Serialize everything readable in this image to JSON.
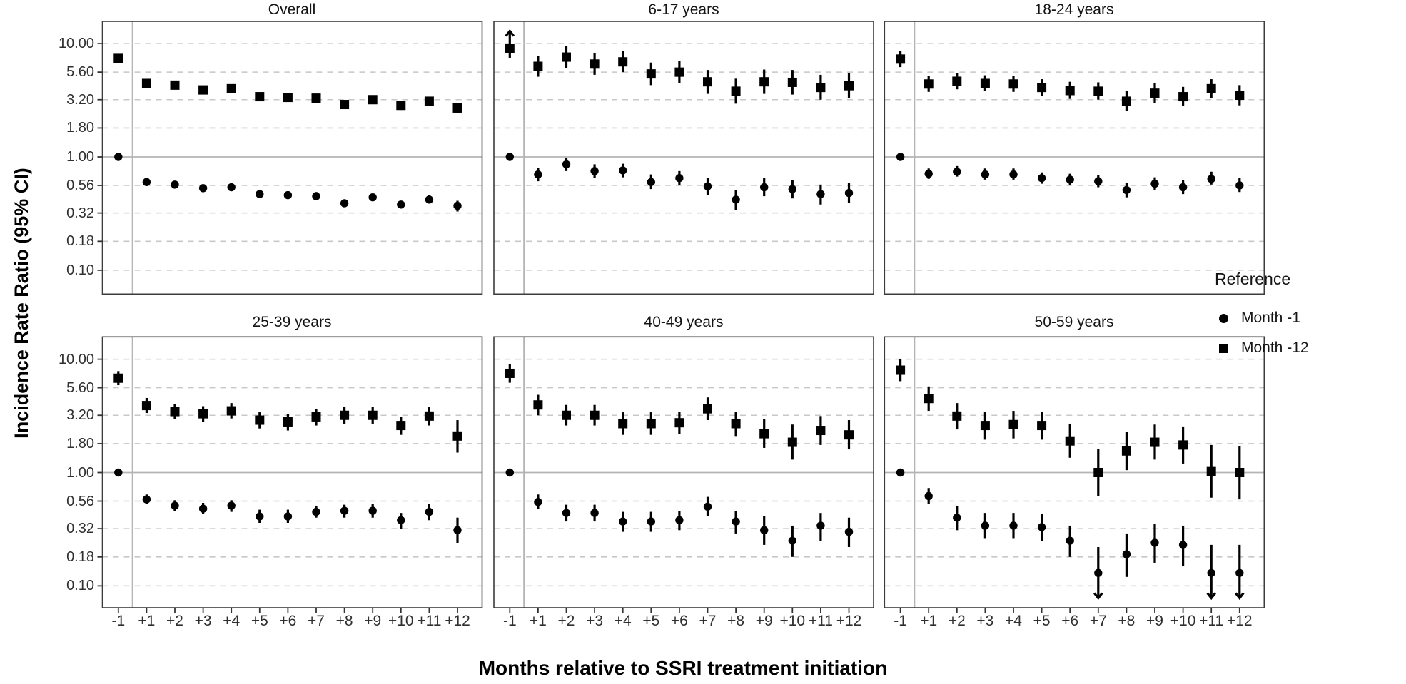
{
  "colors": {
    "point": "#000000",
    "grid_dashed": "#c8c8c8",
    "reference_line": "#b4b4b4",
    "panel_border": "#3c3c3c",
    "tick_mark": "#333333",
    "tick_text": "#303030",
    "title_text": "#141414"
  },
  "chart_data": {
    "type": "scatter",
    "subtype": "forest-plot-faceted",
    "xlabel": "Months relative to SSRI treatment initiation",
    "ylabel": "Incidence Rate Ratio (95% CI)",
    "y_scale": "log",
    "grid": "horizontal-dashed",
    "y_ticks": [
      "10.00",
      "5.60",
      "3.20",
      "1.80",
      "1.00",
      "0.56",
      "0.32",
      "0.18",
      "0.10"
    ],
    "y_tick_values": [
      10.0,
      5.6,
      3.2,
      1.8,
      1.0,
      0.56,
      0.32,
      0.18,
      0.1
    ],
    "x_ticks": [
      "-1",
      "+1",
      "+2",
      "+3",
      "+4",
      "+5",
      "+6",
      "+7",
      "+8",
      "+9",
      "+10",
      "+11",
      "+12"
    ],
    "reference_line_y": 1.0,
    "vertical_reference_between": [
      "-1",
      "+1"
    ],
    "legend": {
      "title": "Reference",
      "position": "right",
      "items": [
        {
          "label": "Month -1",
          "marker": "circle"
        },
        {
          "label": "Month -12",
          "marker": "square"
        }
      ]
    },
    "point_note": "points are [estimate, ci_low, ci_high]; ci beyond axis range is drawn as an arrow",
    "panels": [
      {
        "title": "Overall",
        "series": [
          {
            "name": "Month -12",
            "marker": "square",
            "points": [
              [
                7.4,
                6.8,
                8.1
              ],
              [
                4.45,
                4.15,
                4.8
              ],
              [
                4.3,
                4.0,
                4.6
              ],
              [
                3.9,
                3.65,
                4.2
              ],
              [
                4.0,
                3.7,
                4.3
              ],
              [
                3.4,
                3.15,
                3.65
              ],
              [
                3.35,
                3.1,
                3.6
              ],
              [
                3.3,
                3.05,
                3.55
              ],
              [
                2.9,
                2.7,
                3.15
              ],
              [
                3.2,
                2.95,
                3.45
              ],
              [
                2.85,
                2.6,
                3.1
              ],
              [
                3.1,
                2.85,
                3.35
              ],
              [
                2.7,
                2.45,
                2.95
              ]
            ]
          },
          {
            "name": "Month -1",
            "marker": "circle",
            "points": [
              [
                1.0,
                1.0,
                1.0
              ],
              [
                0.6,
                0.57,
                0.64
              ],
              [
                0.57,
                0.54,
                0.61
              ],
              [
                0.53,
                0.5,
                0.57
              ],
              [
                0.54,
                0.51,
                0.58
              ],
              [
                0.47,
                0.44,
                0.5
              ],
              [
                0.46,
                0.43,
                0.49
              ],
              [
                0.45,
                0.42,
                0.49
              ],
              [
                0.39,
                0.36,
                0.42
              ],
              [
                0.44,
                0.41,
                0.47
              ],
              [
                0.38,
                0.35,
                0.41
              ],
              [
                0.42,
                0.39,
                0.46
              ],
              [
                0.37,
                0.33,
                0.41
              ]
            ]
          }
        ]
      },
      {
        "title": "6-17 years",
        "series": [
          {
            "name": "Month -12",
            "marker": "square",
            "points": [
              [
                9.1,
                7.5,
                16.0
              ],
              [
                6.3,
                5.1,
                7.8
              ],
              [
                7.6,
                6.1,
                9.5
              ],
              [
                6.6,
                5.3,
                8.2
              ],
              [
                6.9,
                5.6,
                8.6
              ],
              [
                5.4,
                4.3,
                6.8
              ],
              [
                5.6,
                4.5,
                7.0
              ],
              [
                4.6,
                3.6,
                5.85
              ],
              [
                3.8,
                2.95,
                4.9
              ],
              [
                4.6,
                3.6,
                5.9
              ],
              [
                4.55,
                3.55,
                5.85
              ],
              [
                4.1,
                3.2,
                5.3
              ],
              [
                4.25,
                3.3,
                5.45
              ]
            ]
          },
          {
            "name": "Month -1",
            "marker": "circle",
            "points": [
              [
                1.0,
                1.0,
                1.0
              ],
              [
                0.7,
                0.61,
                0.8
              ],
              [
                0.86,
                0.75,
                0.98
              ],
              [
                0.75,
                0.65,
                0.86
              ],
              [
                0.76,
                0.66,
                0.87
              ],
              [
                0.6,
                0.52,
                0.7
              ],
              [
                0.65,
                0.56,
                0.75
              ],
              [
                0.55,
                0.46,
                0.65
              ],
              [
                0.42,
                0.34,
                0.51
              ],
              [
                0.54,
                0.45,
                0.65
              ],
              [
                0.52,
                0.43,
                0.62
              ],
              [
                0.47,
                0.38,
                0.57
              ],
              [
                0.48,
                0.39,
                0.59
              ]
            ]
          }
        ]
      },
      {
        "title": "18-24 years",
        "series": [
          {
            "name": "Month -12",
            "marker": "square",
            "points": [
              [
                7.3,
                6.2,
                8.6
              ],
              [
                4.4,
                3.75,
                5.2
              ],
              [
                4.65,
                3.95,
                5.5
              ],
              [
                4.45,
                3.8,
                5.25
              ],
              [
                4.4,
                3.75,
                5.2
              ],
              [
                4.1,
                3.45,
                4.85
              ],
              [
                3.85,
                3.25,
                4.6
              ],
              [
                3.8,
                3.2,
                4.55
              ],
              [
                3.1,
                2.55,
                3.8
              ],
              [
                3.65,
                3.0,
                4.45
              ],
              [
                3.4,
                2.8,
                4.15
              ],
              [
                4.0,
                3.3,
                4.85
              ],
              [
                3.5,
                2.85,
                4.3
              ]
            ]
          },
          {
            "name": "Month -1",
            "marker": "circle",
            "points": [
              [
                1.0,
                1.0,
                1.0
              ],
              [
                0.71,
                0.64,
                0.79
              ],
              [
                0.74,
                0.67,
                0.83
              ],
              [
                0.7,
                0.63,
                0.79
              ],
              [
                0.7,
                0.63,
                0.79
              ],
              [
                0.65,
                0.58,
                0.73
              ],
              [
                0.63,
                0.56,
                0.71
              ],
              [
                0.61,
                0.54,
                0.69
              ],
              [
                0.51,
                0.44,
                0.59
              ],
              [
                0.58,
                0.51,
                0.66
              ],
              [
                0.54,
                0.47,
                0.62
              ],
              [
                0.64,
                0.57,
                0.74
              ],
              [
                0.56,
                0.49,
                0.65
              ]
            ]
          }
        ]
      },
      {
        "title": "25-39 years",
        "series": [
          {
            "name": "Month -12",
            "marker": "square",
            "points": [
              [
                6.8,
                5.9,
                7.85
              ],
              [
                3.9,
                3.35,
                4.55
              ],
              [
                3.45,
                2.95,
                4.0
              ],
              [
                3.3,
                2.8,
                3.85
              ],
              [
                3.5,
                3.0,
                4.1
              ],
              [
                2.9,
                2.45,
                3.4
              ],
              [
                2.8,
                2.35,
                3.3
              ],
              [
                3.1,
                2.6,
                3.65
              ],
              [
                3.2,
                2.7,
                3.8
              ],
              [
                3.2,
                2.7,
                3.8
              ],
              [
                2.6,
                2.15,
                3.1
              ],
              [
                3.15,
                2.6,
                3.8
              ],
              [
                2.1,
                1.5,
                2.9
              ]
            ]
          },
          {
            "name": "Month -1",
            "marker": "circle",
            "points": [
              [
                1.0,
                1.0,
                1.0
              ],
              [
                0.58,
                0.53,
                0.64
              ],
              [
                0.51,
                0.46,
                0.57
              ],
              [
                0.48,
                0.43,
                0.54
              ],
              [
                0.51,
                0.45,
                0.57
              ],
              [
                0.41,
                0.36,
                0.47
              ],
              [
                0.41,
                0.36,
                0.47
              ],
              [
                0.45,
                0.4,
                0.51
              ],
              [
                0.46,
                0.4,
                0.52
              ],
              [
                0.46,
                0.4,
                0.53
              ],
              [
                0.38,
                0.32,
                0.44
              ],
              [
                0.45,
                0.38,
                0.53
              ],
              [
                0.31,
                0.24,
                0.4
              ]
            ]
          }
        ]
      },
      {
        "title": "40-49 years",
        "series": [
          {
            "name": "Month -12",
            "marker": "square",
            "points": [
              [
                7.5,
                6.2,
                9.1
              ],
              [
                3.95,
                3.2,
                4.85
              ],
              [
                3.2,
                2.6,
                3.95
              ],
              [
                3.2,
                2.6,
                3.95
              ],
              [
                2.7,
                2.15,
                3.4
              ],
              [
                2.7,
                2.15,
                3.4
              ],
              [
                2.75,
                2.2,
                3.45
              ],
              [
                3.65,
                2.9,
                4.6
              ],
              [
                2.7,
                2.1,
                3.45
              ],
              [
                2.2,
                1.65,
                2.95
              ],
              [
                1.85,
                1.3,
                2.65
              ],
              [
                2.35,
                1.75,
                3.15
              ],
              [
                2.15,
                1.6,
                2.9
              ]
            ]
          },
          {
            "name": "Month -1",
            "marker": "circle",
            "points": [
              [
                1.0,
                1.0,
                1.0
              ],
              [
                0.55,
                0.48,
                0.64
              ],
              [
                0.44,
                0.37,
                0.52
              ],
              [
                0.44,
                0.37,
                0.52
              ],
              [
                0.37,
                0.3,
                0.45
              ],
              [
                0.37,
                0.3,
                0.45
              ],
              [
                0.38,
                0.31,
                0.46
              ],
              [
                0.5,
                0.41,
                0.61
              ],
              [
                0.37,
                0.29,
                0.46
              ],
              [
                0.31,
                0.23,
                0.41
              ],
              [
                0.25,
                0.18,
                0.34
              ],
              [
                0.34,
                0.25,
                0.44
              ],
              [
                0.3,
                0.22,
                0.4
              ]
            ]
          }
        ]
      },
      {
        "title": "50-59 years",
        "series": [
          {
            "name": "Month -12",
            "marker": "square",
            "points": [
              [
                8.0,
                6.4,
                10.0
              ],
              [
                4.5,
                3.5,
                5.75
              ],
              [
                3.15,
                2.4,
                4.1
              ],
              [
                2.6,
                1.95,
                3.45
              ],
              [
                2.65,
                2.0,
                3.5
              ],
              [
                2.6,
                1.95,
                3.45
              ],
              [
                1.9,
                1.35,
                2.7
              ],
              [
                1.0,
                0.62,
                1.62
              ],
              [
                1.55,
                1.05,
                2.3
              ],
              [
                1.85,
                1.3,
                2.65
              ],
              [
                1.75,
                1.2,
                2.55
              ],
              [
                1.02,
                0.6,
                1.75
              ],
              [
                1.0,
                0.58,
                1.72
              ]
            ]
          },
          {
            "name": "Month -1",
            "marker": "circle",
            "points": [
              [
                1.0,
                1.0,
                1.0
              ],
              [
                0.62,
                0.53,
                0.73
              ],
              [
                0.4,
                0.31,
                0.51
              ],
              [
                0.34,
                0.26,
                0.44
              ],
              [
                0.34,
                0.26,
                0.44
              ],
              [
                0.33,
                0.25,
                0.43
              ],
              [
                0.25,
                0.18,
                0.34
              ],
              [
                0.13,
                0.05,
                0.22
              ],
              [
                0.19,
                0.12,
                0.29
              ],
              [
                0.24,
                0.16,
                0.35
              ],
              [
                0.23,
                0.15,
                0.34
              ],
              [
                0.13,
                0.05,
                0.23
              ],
              [
                0.13,
                0.05,
                0.23
              ]
            ]
          }
        ]
      }
    ]
  }
}
